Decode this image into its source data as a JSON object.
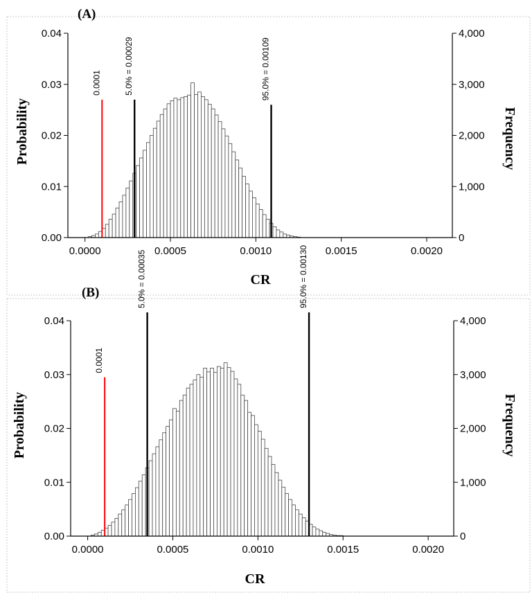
{
  "chart_data": [
    {
      "type": "bar",
      "panel_label": "(A)",
      "xlabel": "CR",
      "ylabel": "Probability",
      "y2label": "Frequency",
      "xlim": [
        -0.0001,
        0.00215
      ],
      "ylim": [
        0,
        0.04
      ],
      "y2lim": [
        0,
        4000
      ],
      "x_ticks": [
        "0.0000",
        "0.0005",
        "0.0010",
        "0.0015",
        "0.0020"
      ],
      "y_ticks": [
        "0.00",
        "0.01",
        "0.02",
        "0.03",
        "0.04"
      ],
      "y2_ticks": [
        "0",
        "1,000",
        "2,000",
        "3,000",
        "4,000"
      ],
      "bin_width": 2e-05,
      "bin_start": 2e-05,
      "values": [
        0.0002,
        0.0004,
        0.0007,
        0.0012,
        0.0018,
        0.0026,
        0.0036,
        0.0046,
        0.0058,
        0.007,
        0.0083,
        0.0097,
        0.0111,
        0.0126,
        0.0141,
        0.0156,
        0.0171,
        0.0186,
        0.02,
        0.0214,
        0.0228,
        0.0241,
        0.0252,
        0.0262,
        0.0268,
        0.0273,
        0.027,
        0.0274,
        0.0276,
        0.0279,
        0.0303,
        0.028,
        0.0285,
        0.0276,
        0.027,
        0.0261,
        0.0252,
        0.024,
        0.0227,
        0.0213,
        0.0199,
        0.0184,
        0.0168,
        0.0152,
        0.0136,
        0.012,
        0.0105,
        0.0091,
        0.0078,
        0.0066,
        0.0055,
        0.0045,
        0.0036,
        0.0028,
        0.0021,
        0.0015,
        0.0011,
        0.0007,
        0.0005,
        0.0003,
        0.0002,
        0.0001
      ],
      "markers": [
        {
          "x": 0.0001,
          "label": "0.0001",
          "color": "#ff0000",
          "top": 0.027
        },
        {
          "x": 0.00029,
          "label": "5.0% = 0.00029",
          "color": "#000000",
          "top": 0.027
        },
        {
          "x": 0.00109,
          "label": "95.0% = 0.00109",
          "color": "#000000",
          "top": 0.026
        }
      ]
    },
    {
      "type": "bar",
      "panel_label": "(B)",
      "xlabel": "CR",
      "ylabel": "Probability",
      "y2label": "Frequency",
      "xlim": [
        -0.0001,
        0.00215
      ],
      "ylim": [
        0,
        0.04
      ],
      "y2lim": [
        0,
        4000
      ],
      "x_ticks": [
        "0.0000",
        "0.0005",
        "0.0010",
        "0.0015",
        "0.0020"
      ],
      "y_ticks": [
        "0.00",
        "0.01",
        "0.02",
        "0.03",
        "0.04"
      ],
      "y2_ticks": [
        "0",
        "1,000",
        "2,000",
        "3,000",
        "4,000"
      ],
      "bin_width": 2e-05,
      "bin_start": 2e-05,
      "values": [
        0.0002,
        0.0004,
        0.0007,
        0.0011,
        0.0015,
        0.002,
        0.0026,
        0.0033,
        0.0041,
        0.0049,
        0.0058,
        0.0068,
        0.0079,
        0.009,
        0.0102,
        0.0114,
        0.0127,
        0.014,
        0.0153,
        0.0166,
        0.0179,
        0.0192,
        0.0204,
        0.0216,
        0.0237,
        0.0232,
        0.0252,
        0.0262,
        0.0275,
        0.0282,
        0.029,
        0.03,
        0.0295,
        0.0312,
        0.0305,
        0.0312,
        0.0304,
        0.0315,
        0.0312,
        0.0322,
        0.0313,
        0.0306,
        0.0292,
        0.0282,
        0.0262,
        0.0252,
        0.023,
        0.0224,
        0.0207,
        0.0195,
        0.018,
        0.0163,
        0.0148,
        0.0133,
        0.0118,
        0.0104,
        0.0091,
        0.0079,
        0.0068,
        0.0058,
        0.0049,
        0.0041,
        0.0034,
        0.0028,
        0.0022,
        0.0017,
        0.0013,
        0.001,
        0.0007,
        0.0005,
        0.0003,
        0.0002,
        0.0001,
        0.0001
      ],
      "markers": [
        {
          "x": 0.0001,
          "label": "0.0001",
          "color": "#ff0000",
          "top": 0.0295
        },
        {
          "x": 0.00035,
          "label": "5.0% = 0.00035",
          "color": "#000000",
          "top": 0.0435
        },
        {
          "x": 0.0013,
          "label": "95.0% = 0.00130",
          "color": "#000000",
          "top": 0.0435
        }
      ]
    }
  ]
}
